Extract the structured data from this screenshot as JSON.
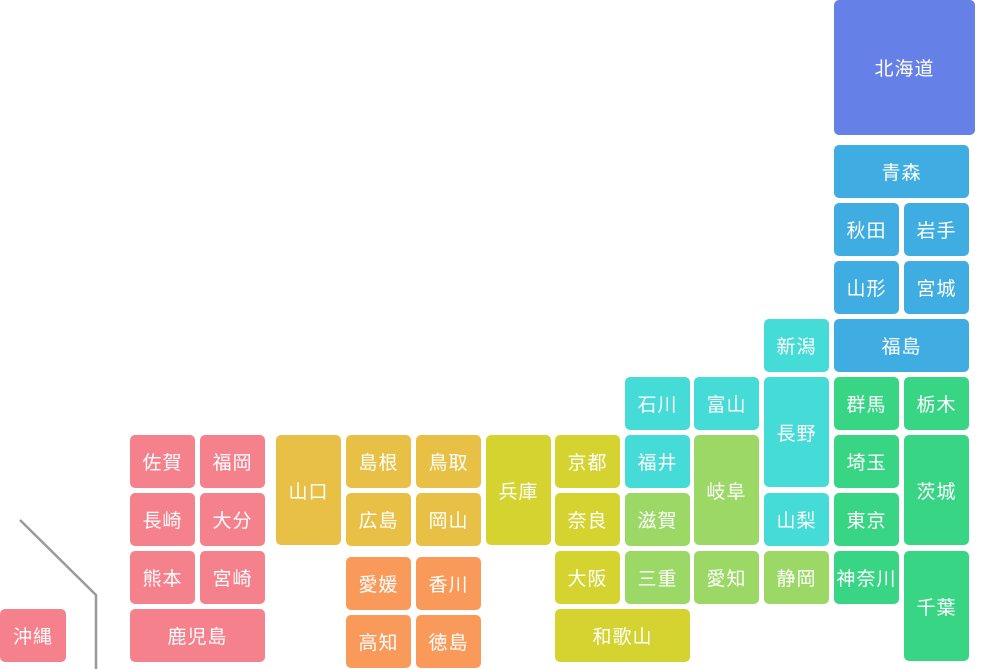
{
  "colors": {
    "hokkaido": "#6580e6",
    "tohoku": "#40ade2",
    "kanto": "#38d585",
    "chubu": "#45dbd7",
    "chubu_green": "#9bd865",
    "kinki": "#d4d330",
    "chugoku": "#e9c046",
    "shikoku": "#f99a5b",
    "kyushu": "#f5818c"
  },
  "prefectures": {
    "hokkaido": "北海道",
    "aomori": "青森",
    "akita": "秋田",
    "iwate": "岩手",
    "yamagata": "山形",
    "miyagi": "宮城",
    "fukushima": "福島",
    "niigata": "新潟",
    "gunma": "群馬",
    "tochigi": "栃木",
    "ibaraki": "茨城",
    "saitama": "埼玉",
    "tokyo": "東京",
    "chiba": "千葉",
    "kanagawa": "神奈川",
    "ishikawa": "石川",
    "toyama": "富山",
    "nagano": "長野",
    "fukui": "福井",
    "gifu": "岐阜",
    "yamanashi": "山梨",
    "shizuoka": "静岡",
    "aichi": "愛知",
    "kyoto": "京都",
    "shiga": "滋賀",
    "nara": "奈良",
    "osaka": "大阪",
    "mie": "三重",
    "wakayama": "和歌山",
    "hyogo": "兵庫",
    "shimane": "島根",
    "tottori": "鳥取",
    "hiroshima": "広島",
    "okayama": "岡山",
    "yamaguchi": "山口",
    "ehime": "愛媛",
    "kagawa": "香川",
    "kochi": "高知",
    "tokushima": "徳島",
    "saga": "佐賀",
    "fukuoka": "福岡",
    "nagasaki": "長崎",
    "oita": "大分",
    "kumamoto": "熊本",
    "miyazaki": "宮崎",
    "kagoshima": "鹿児島",
    "okinawa": "沖縄"
  }
}
